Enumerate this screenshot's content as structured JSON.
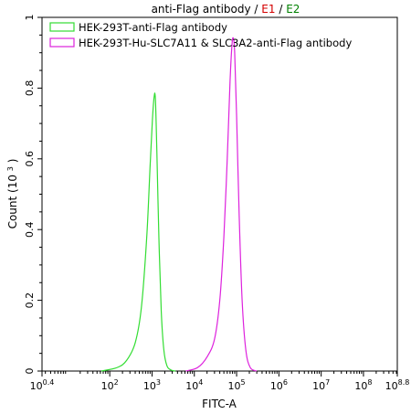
{
  "chart_data": {
    "type": "line",
    "title": {
      "prefix": "anti-Flag antibody / ",
      "e1": "E1",
      "sep": " / ",
      "e2": "E2",
      "e1_color": "#d40000",
      "e2_color": "#008000"
    },
    "xlabel": "FITC-A",
    "ylabel": "Count (10",
    "ylabel_sup": "3",
    "ylabel_end": ")",
    "x_scale": "log",
    "xlim": [
      2.5,
      631000000
    ],
    "ylim": [
      0,
      1
    ],
    "x_ticks": [
      {
        "value": 2.5,
        "base": "10",
        "exp": "0.4"
      },
      {
        "value": 100,
        "base": "10",
        "exp": "2"
      },
      {
        "value": 1000,
        "base": "10",
        "exp": "3"
      },
      {
        "value": 10000,
        "base": "10",
        "exp": "4"
      },
      {
        "value": 100000,
        "base": "10",
        "exp": "5"
      },
      {
        "value": 1000000,
        "base": "10",
        "exp": "6"
      },
      {
        "value": 10000000,
        "base": "10",
        "exp": "7"
      },
      {
        "value": 100000000,
        "base": "10",
        "exp": "8"
      },
      {
        "value": 631000000,
        "base": "10",
        "exp": "8.8"
      }
    ],
    "y_ticks": [
      {
        "value": 0,
        "label": "0"
      },
      {
        "value": 0.2,
        "label": "0.2"
      },
      {
        "value": 0.4,
        "label": "0.4"
      },
      {
        "value": 0.6,
        "label": "0.6"
      },
      {
        "value": 0.8,
        "label": "0.8"
      },
      {
        "value": 1,
        "label": "1"
      }
    ],
    "grid": false,
    "legend_position": "top-left",
    "series": [
      {
        "name": "HEK-293T-anti-Flag antibody",
        "color": "#33dd33",
        "x": [
          63,
          150,
          250,
          400,
          560,
          750,
          900,
          1020,
          1120,
          1200,
          1300,
          1450,
          1650,
          1900,
          2250,
          2800,
          3600
        ],
        "y": [
          0,
          0.01,
          0.03,
          0.08,
          0.18,
          0.38,
          0.58,
          0.71,
          0.775,
          0.77,
          0.62,
          0.38,
          0.17,
          0.06,
          0.015,
          0.003,
          0
        ]
      },
      {
        "name": "HEK-293T-Hu-SLC7A11 & SLC3A2-anti-Flag antibody",
        "color": "#dd22dd",
        "x": [
          6300,
          12000,
          20000,
          30000,
          40000,
          50000,
          60000,
          70000,
          78000,
          84000,
          90000,
          100000,
          115000,
          135000,
          165000,
          210000,
          300000
        ],
        "y": [
          0,
          0.01,
          0.04,
          0.09,
          0.2,
          0.38,
          0.6,
          0.82,
          0.925,
          0.94,
          0.9,
          0.72,
          0.44,
          0.2,
          0.06,
          0.01,
          0
        ]
      }
    ]
  }
}
